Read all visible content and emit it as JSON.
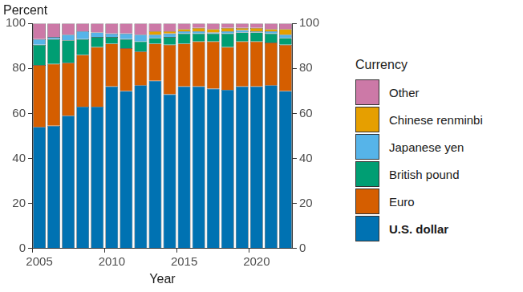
{
  "chart_data": {
    "type": "bar",
    "ylabel": "Percent",
    "xlabel": "Year",
    "legend_title": "Currency",
    "legend": "right",
    "stacked": true,
    "grid": false,
    "categories": [
      "2005",
      null,
      null,
      null,
      null,
      "2010",
      null,
      null,
      null,
      null,
      "2015",
      null,
      null,
      null,
      null,
      "2020",
      null,
      null
    ],
    "series": [
      {
        "name": "U.S. dollar",
        "color": "#0072B2",
        "values": [
          54,
          54.5,
          59,
          63,
          63,
          72,
          70,
          72.5,
          74.5,
          68.5,
          72,
          72,
          71,
          70.5,
          72,
          72,
          72.5,
          70
        ]
      },
      {
        "name": "Euro",
        "color": "#D55E00",
        "values": [
          27.5,
          27.5,
          23.5,
          23,
          26.5,
          19,
          19,
          15,
          16.5,
          22,
          19,
          20,
          21,
          19,
          20,
          20,
          19,
          20.5
        ]
      },
      {
        "name": "British pound",
        "color": "#009E73",
        "values": [
          9,
          11,
          10,
          7,
          4.5,
          3,
          4,
          4.5,
          2.5,
          3.5,
          4.5,
          3.5,
          3.5,
          6,
          4,
          4,
          4,
          3
        ]
      },
      {
        "name": "Japanese yen",
        "color": "#56B4E9",
        "values": [
          2.5,
          1,
          2.5,
          3.5,
          2,
          1.5,
          2.5,
          3,
          1.5,
          1.5,
          1,
          1,
          0.5,
          1,
          1,
          0.5,
          1,
          1.5
        ]
      },
      {
        "name": "Chinese renminbi",
        "color": "#E69F00",
        "values": [
          0,
          0,
          0,
          0,
          0,
          0,
          0,
          0,
          1.5,
          1,
          1,
          1.5,
          1.5,
          1.5,
          1,
          1.5,
          1,
          2.5
        ]
      },
      {
        "name": "Other",
        "color": "#CC79A7",
        "values": [
          7,
          6,
          5,
          3.5,
          4,
          4.5,
          4.5,
          5,
          3.5,
          3.5,
          2.5,
          2,
          2.5,
          2,
          2,
          2,
          2.5,
          2.5
        ]
      }
    ],
    "ylim": [
      0,
      100
    ],
    "yticks": [
      0,
      20,
      40,
      60,
      80,
      100
    ]
  }
}
